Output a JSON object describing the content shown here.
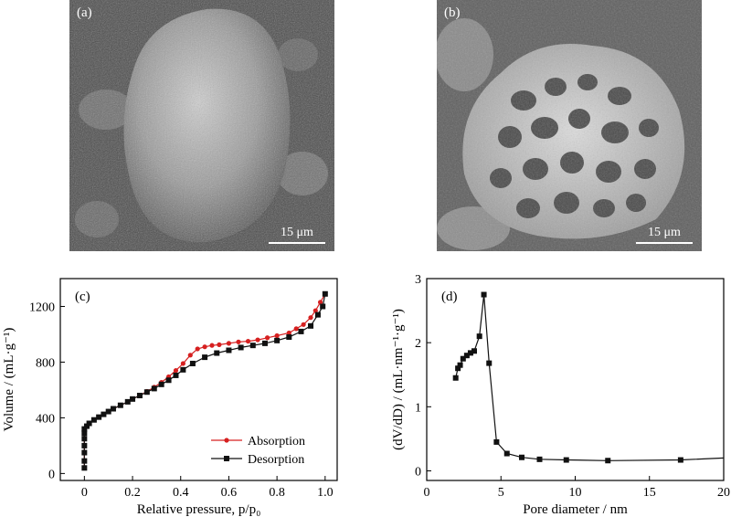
{
  "panels": {
    "a": {
      "label": "(a)",
      "scale_bar": "15 μm"
    },
    "b": {
      "label": "(b)",
      "scale_bar": "15 μm"
    }
  },
  "chart_data": [
    {
      "panel": "(c)",
      "type": "line",
      "xlabel": "Relative pressure, p/p₀",
      "ylabel": "Volume / (mL·g⁻¹)",
      "xlim": [
        -0.1,
        1.05
      ],
      "ylim": [
        -50,
        1400
      ],
      "xticks": [
        "0",
        "0.2",
        "0.4",
        "0.6",
        "0.8",
        "1.0"
      ],
      "xtick_values": [
        0,
        0.2,
        0.4,
        0.6,
        0.8,
        1.0
      ],
      "yticks": [
        "0",
        "400",
        "800",
        "1200"
      ],
      "ytick_values": [
        0,
        400,
        800,
        1200
      ],
      "legend_position": "bottom-right",
      "series": [
        {
          "name": "Absorption",
          "color": "#d62020",
          "marker": "circle",
          "x": [
            0.0,
            0.0,
            0.0,
            0.0,
            0.0,
            0.0,
            0.0,
            0.01,
            0.02,
            0.04,
            0.06,
            0.08,
            0.1,
            0.12,
            0.15,
            0.18,
            0.2,
            0.23,
            0.26,
            0.29,
            0.32,
            0.35,
            0.38,
            0.41,
            0.44,
            0.47,
            0.5,
            0.53,
            0.56,
            0.6,
            0.64,
            0.68,
            0.72,
            0.76,
            0.8,
            0.85,
            0.88,
            0.91,
            0.94,
            0.96,
            0.98,
            1.0
          ],
          "y": [
            40,
            90,
            150,
            200,
            250,
            290,
            320,
            340,
            360,
            385,
            405,
            425,
            445,
            465,
            490,
            515,
            535,
            560,
            590,
            620,
            655,
            695,
            740,
            790,
            850,
            895,
            910,
            920,
            925,
            935,
            945,
            950,
            960,
            975,
            990,
            1010,
            1040,
            1070,
            1120,
            1170,
            1230,
            1290
          ]
        },
        {
          "name": "Desorption",
          "color": "#111111",
          "marker": "square",
          "x": [
            0.0,
            0.0,
            0.0,
            0.0,
            0.0,
            0.0,
            0.0,
            0.01,
            0.02,
            0.04,
            0.06,
            0.08,
            0.1,
            0.12,
            0.15,
            0.18,
            0.2,
            0.23,
            0.26,
            0.29,
            0.32,
            0.35,
            0.38,
            0.41,
            0.45,
            0.5,
            0.55,
            0.6,
            0.65,
            0.7,
            0.75,
            0.8,
            0.85,
            0.9,
            0.94,
            0.97,
            0.99,
            1.0
          ],
          "y": [
            40,
            90,
            150,
            200,
            250,
            290,
            320,
            340,
            360,
            385,
            405,
            425,
            445,
            465,
            490,
            515,
            535,
            560,
            585,
            610,
            640,
            670,
            705,
            745,
            790,
            835,
            865,
            885,
            905,
            920,
            935,
            955,
            980,
            1020,
            1060,
            1140,
            1200,
            1290
          ]
        }
      ]
    },
    {
      "panel": "(d)",
      "type": "line",
      "xlabel": "Pore diameter / nm",
      "ylabel": "(dV/dD) / (mL·nm⁻¹·g⁻¹)",
      "xlim": [
        0,
        20
      ],
      "ylim": [
        -0.15,
        3.0
      ],
      "xticks": [
        "0",
        "5",
        "10",
        "15",
        "20"
      ],
      "xtick_values": [
        0,
        5,
        10,
        15,
        20
      ],
      "yticks": [
        "0",
        "1",
        "2",
        "3"
      ],
      "ytick_values": [
        0,
        1,
        2,
        3
      ],
      "series": [
        {
          "name": "",
          "color": "#111111",
          "marker": "square",
          "x": [
            1.95,
            2.1,
            2.25,
            2.45,
            2.7,
            2.95,
            3.2,
            3.55,
            3.85,
            4.2,
            4.7,
            5.4,
            6.4,
            7.6,
            9.4,
            12.2,
            17.1,
            20.0
          ],
          "y": [
            1.45,
            1.6,
            1.65,
            1.75,
            1.8,
            1.84,
            1.87,
            2.1,
            2.75,
            1.68,
            0.45,
            0.27,
            0.21,
            0.18,
            0.17,
            0.16,
            0.17,
            0.2
          ],
          "marker_mask": [
            1,
            1,
            1,
            1,
            1,
            1,
            1,
            1,
            1,
            1,
            1,
            1,
            1,
            1,
            1,
            1,
            1,
            0
          ]
        }
      ]
    }
  ]
}
